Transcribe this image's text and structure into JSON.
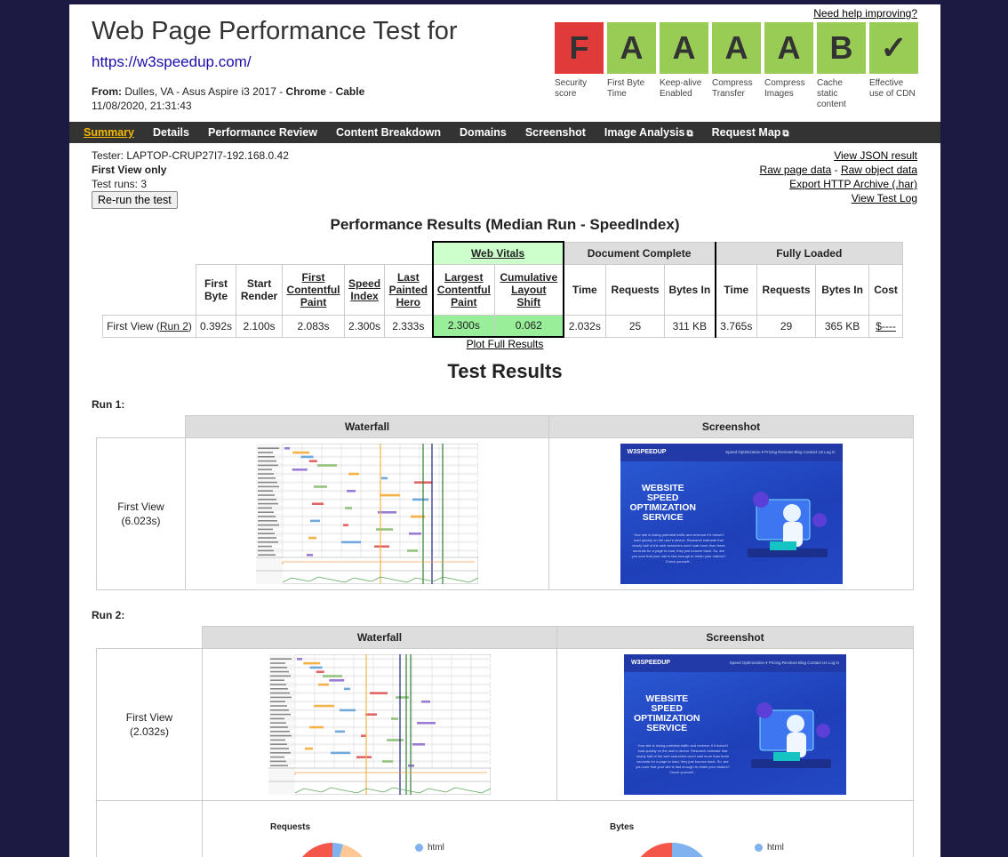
{
  "header": {
    "title": "Web Page Performance Test for",
    "url": "https://w3speedup.com/",
    "from_label": "From:",
    "location": "Dulles, VA - Asus Aspire i3 2017 - ",
    "browser": "Chrome",
    "sep": " - ",
    "connection": "Cable",
    "datetime": "11/08/2020, 21:31:43",
    "help_link": "Need help improving?"
  },
  "grades": [
    {
      "grade": "F",
      "label": "Security score",
      "color": "#e03a3a"
    },
    {
      "grade": "A",
      "label": "First Byte Time",
      "color": "#99cc55"
    },
    {
      "grade": "A",
      "label": "Keep-alive Enabled",
      "color": "#99cc55"
    },
    {
      "grade": "A",
      "label": "Compress Transfer",
      "color": "#99cc55"
    },
    {
      "grade": "A",
      "label": "Compress Images",
      "color": "#99cc55"
    },
    {
      "grade": "B",
      "label": "Cache static content",
      "color": "#99cc55"
    },
    {
      "grade": "✓",
      "label": "Effective use of CDN",
      "color": "#99cc55"
    }
  ],
  "nav": [
    {
      "label": "Summary",
      "active": true
    },
    {
      "label": "Details"
    },
    {
      "label": "Performance Review"
    },
    {
      "label": "Content Breakdown"
    },
    {
      "label": "Domains"
    },
    {
      "label": "Screenshot"
    },
    {
      "label": "Image Analysis",
      "external": true
    },
    {
      "label": "Request Map",
      "external": true
    }
  ],
  "tester": {
    "tester_line": "Tester: LAPTOP-CRUP27I7-192.168.0.42",
    "view": "First View only",
    "runs": "Test runs: 3",
    "rerun_button": "Re-run the test"
  },
  "result_links": {
    "json": "View JSON result",
    "raw_page": "Raw page data",
    "dash": " - ",
    "raw_object": "Raw object data",
    "har": "Export HTTP Archive (.har)",
    "log": "View Test Log"
  },
  "perf": {
    "heading": "Performance Results (Median Run - SpeedIndex)",
    "groups": {
      "web_vitals": "Web Vitals",
      "document_complete": "Document Complete",
      "fully_loaded": "Fully Loaded"
    },
    "cols": {
      "first_byte": "First Byte",
      "start_render": "Start Render",
      "fcp": "First Contentful Paint",
      "speed_index": "Speed Index",
      "last_painted_hero": "Last Painted Hero",
      "lcp": "Largest Contentful Paint",
      "cls": "Cumulative Layout Shift",
      "time": "Time",
      "requests": "Requests",
      "bytes_in": "Bytes In",
      "cost": "Cost"
    },
    "row": {
      "label": "First View (",
      "run_link": "Run 2",
      "label_end": ")",
      "first_byte": "0.392s",
      "start_render": "2.100s",
      "fcp": "2.083s",
      "speed_index": "2.300s",
      "last_painted_hero": "2.333s",
      "lcp": "2.300s",
      "cls": "0.062",
      "dc_time": "2.032s",
      "dc_requests": "25",
      "dc_bytes": "311 KB",
      "fl_time": "3.765s",
      "fl_requests": "29",
      "fl_bytes": "365 KB",
      "cost": "$----"
    },
    "plot_link": "Plot Full Results"
  },
  "test_results": {
    "heading": "Test Results",
    "runs": [
      {
        "label": "Run 1:",
        "waterfall_header": "Waterfall",
        "screenshot_header": "Screenshot",
        "view": "First View",
        "time": "(6.023s)"
      },
      {
        "label": "Run 2:",
        "waterfall_header": "Waterfall",
        "screenshot_header": "Screenshot",
        "view": "First View",
        "time": "(2.032s)"
      }
    ],
    "pies": {
      "requests_title": "Requests",
      "bytes_title": "Bytes",
      "legend_html": "html"
    }
  },
  "screenshot_content": {
    "brand": "W3SPEEDUP",
    "menu": "Speed Optimization ▾   Pricing   Reviews   Blog   Contact Us   Log in",
    "hero_line1": "WEBSITE",
    "hero_line2": "SPEED",
    "hero_line3": "OPTIMIZATION",
    "hero_line4": "SERVICE",
    "body": "Your site is losing potential traffic and revenue if it doesn't load quickly on the user's device. Research estimate that nearly half of the web searchers won't wait more than three seconds for a page to load, they just bounce back. So, are you sure that your site is fast enough to retain your visitors? Check yourself..."
  }
}
